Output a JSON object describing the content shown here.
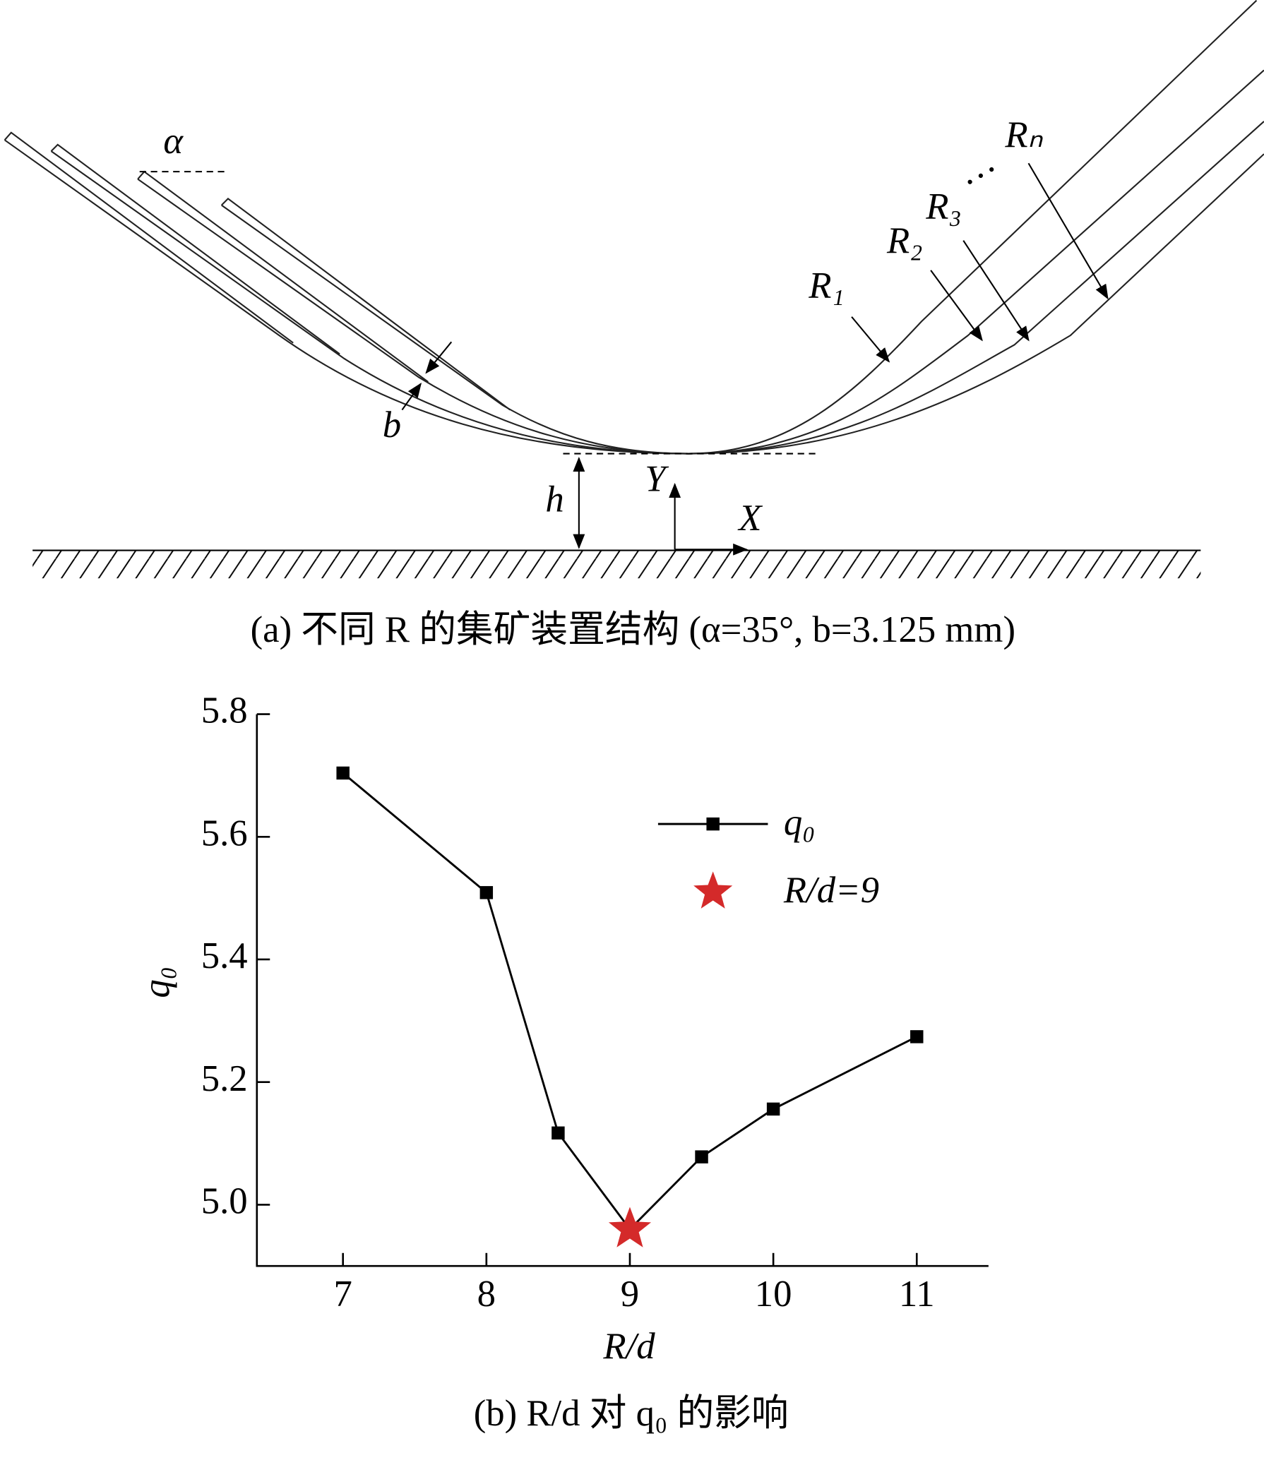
{
  "diagram": {
    "alpha": "α",
    "b": "b",
    "h": "h",
    "x_axis": "X",
    "y_axis": "Y",
    "curves": [
      "R₁",
      "R₂",
      "R₃",
      "Rₙ"
    ],
    "ellipsis": "…",
    "caption": "(a)  不同 R 的集矿装置结构 (α=35°, b=3.125 mm)"
  },
  "chart_data": {
    "type": "line",
    "caption": "(b)  R/d 对 q₀ 的影响",
    "x_label": "R/d",
    "y_label": "q₀",
    "series": [
      {
        "name": "q₀",
        "color": "#000000",
        "marker": "square",
        "x": [
          7,
          8,
          8.5,
          9,
          9.5,
          10,
          11
        ],
        "values": [
          5.704,
          5.509,
          5.117,
          4.96,
          5.078,
          5.156,
          5.274
        ]
      },
      {
        "name": "R/d=9",
        "color": "#d42a2a",
        "marker": "star",
        "x": [
          9
        ],
        "values": [
          4.96
        ]
      }
    ],
    "xlim": [
      6.4,
      11.5
    ],
    "xticks": [
      7,
      8,
      9,
      10,
      11
    ],
    "ylim": [
      4.9,
      5.8
    ],
    "yticks": [
      {
        "value": 5,
        "label": "5.0"
      },
      5.2,
      5.4,
      5.6,
      5.8
    ],
    "grid": false,
    "legend": "upper right"
  }
}
